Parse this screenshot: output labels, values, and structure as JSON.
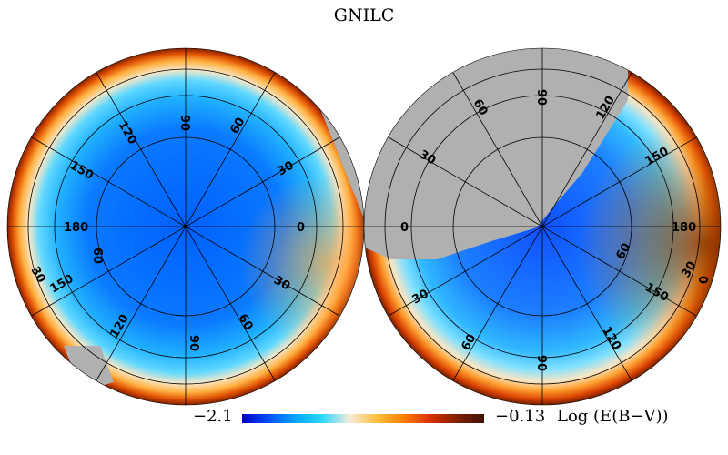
{
  "title": "GNILC",
  "colorbar": {
    "min_label": "−2.1",
    "max_label": "−0.13",
    "quantity_label": "Log (E(B−V))",
    "colors": [
      "#0000c8",
      "#0050ff",
      "#00a8ff",
      "#30d8ff",
      "#f4ecd8",
      "#ffc040",
      "#ff8000",
      "#d83000",
      "#802000",
      "#401000"
    ]
  },
  "hemispheres": [
    {
      "name": "north",
      "longitude_labels": [
        "90",
        "60",
        "30",
        "0",
        "30",
        "60",
        "90",
        "120",
        "150",
        "180",
        "150",
        "120"
      ],
      "latitude_labels": []
    },
    {
      "name": "south",
      "longitude_labels": [
        "90",
        "60",
        "30",
        "0",
        "30",
        "60",
        "90",
        "120",
        "150",
        "180",
        "150",
        "120"
      ],
      "latitude_labels": []
    }
  ],
  "left_labels": [
    {
      "text": "90",
      "name": "lon-90-top"
    },
    {
      "text": "60",
      "name": "lon-60-top"
    },
    {
      "text": "30",
      "name": "lon-30-right"
    },
    {
      "text": "0",
      "name": "lon-0"
    },
    {
      "text": "30",
      "name": "lon-30-lower-right"
    },
    {
      "text": "60",
      "name": "lon-60-bottom"
    },
    {
      "text": "90",
      "name": "lon-90-bottom"
    },
    {
      "text": "120",
      "name": "lon-120-bottom"
    },
    {
      "text": "150",
      "name": "lon-150-lower-left"
    },
    {
      "text": "30",
      "name": "lon-30-left-edge"
    },
    {
      "text": "60",
      "name": "lon-60-left"
    },
    {
      "text": "180",
      "name": "lon-180"
    },
    {
      "text": "150",
      "name": "lon-150-upper-left"
    },
    {
      "text": "120",
      "name": "lon-120-top"
    }
  ],
  "right_labels": [
    {
      "text": "90",
      "name": "lon-90-top"
    },
    {
      "text": "60",
      "name": "lon-60-top"
    },
    {
      "text": "120",
      "name": "lon-120-top"
    },
    {
      "text": "30",
      "name": "lon-30-upper-left"
    },
    {
      "text": "0",
      "name": "lon-0"
    },
    {
      "text": "150",
      "name": "lon-150-upper-right"
    },
    {
      "text": "180",
      "name": "lon-180"
    },
    {
      "text": "60",
      "name": "lon-60-right"
    },
    {
      "text": "30",
      "name": "lon-30-right-edge"
    },
    {
      "text": "0",
      "name": "lon-0-right-edge"
    },
    {
      "text": "150",
      "name": "lon-150-lower-right"
    },
    {
      "text": "30",
      "name": "lon-30-lower-left"
    },
    {
      "text": "60",
      "name": "lon-60-bottom-left"
    },
    {
      "text": "90",
      "name": "lon-90-bottom"
    },
    {
      "text": "120",
      "name": "lon-120-bottom"
    }
  ]
}
